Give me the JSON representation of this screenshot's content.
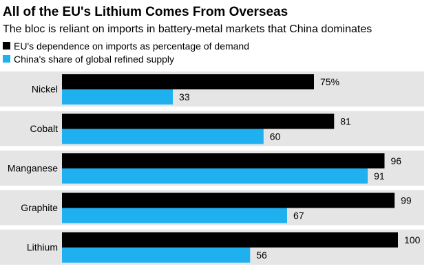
{
  "colors": {
    "accent_black": "#000000",
    "accent_blue": "#1fb0f0",
    "band_background": "#e5e5e5"
  },
  "chart_data": {
    "type": "bar",
    "orientation": "horizontal",
    "title": "All of the EU's Lithium Comes From Overseas",
    "subtitle": "The bloc is reliant on imports in battery-metal markets that China dominates",
    "categories": [
      "Nickel",
      "Cobalt",
      "Manganese",
      "Graphite",
      "Lithium"
    ],
    "series": [
      {
        "name": "EU's dependence on imports as percentage of demand",
        "color": "#000000",
        "values": [
          75,
          81,
          96,
          99,
          100
        ],
        "value_labels": [
          "75%",
          "81",
          "96",
          "99",
          "100"
        ]
      },
      {
        "name": "China's share of global refined supply",
        "color": "#1fb0f0",
        "values": [
          33,
          60,
          91,
          67,
          56
        ],
        "value_labels": [
          "33",
          "60",
          "91",
          "67",
          "56"
        ]
      }
    ],
    "xlim": [
      0,
      100
    ],
    "grid": false,
    "legend_position": "top-left"
  }
}
